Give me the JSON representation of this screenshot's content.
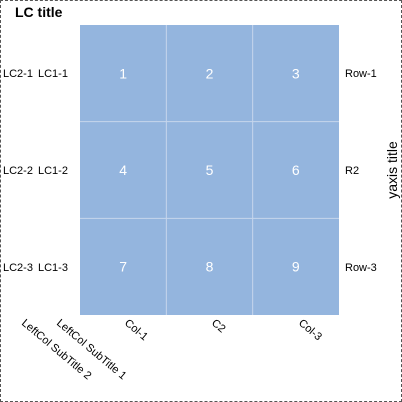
{
  "chart_data": {
    "type": "table",
    "title": "LC title",
    "ylabel": "yaxis title",
    "columns": [
      "Col-1",
      "C2",
      "Col-3"
    ],
    "rows": [
      "Row-1",
      "R2",
      "Row-3"
    ],
    "left_col_1": {
      "subtitle": "LeftCol SubTitle 1",
      "labels": [
        "LC1-1",
        "LC1-2",
        "LC1-3"
      ]
    },
    "left_col_2": {
      "subtitle": "LeftCol SubTitle 2",
      "labels": [
        "LC2-1",
        "LC2-2",
        "LC2-3"
      ]
    },
    "values": [
      [
        1,
        2,
        3
      ],
      [
        4,
        5,
        6
      ],
      [
        7,
        8,
        9
      ]
    ],
    "cell_color": "#94b5de",
    "grid_color": "#c6d6ec"
  }
}
